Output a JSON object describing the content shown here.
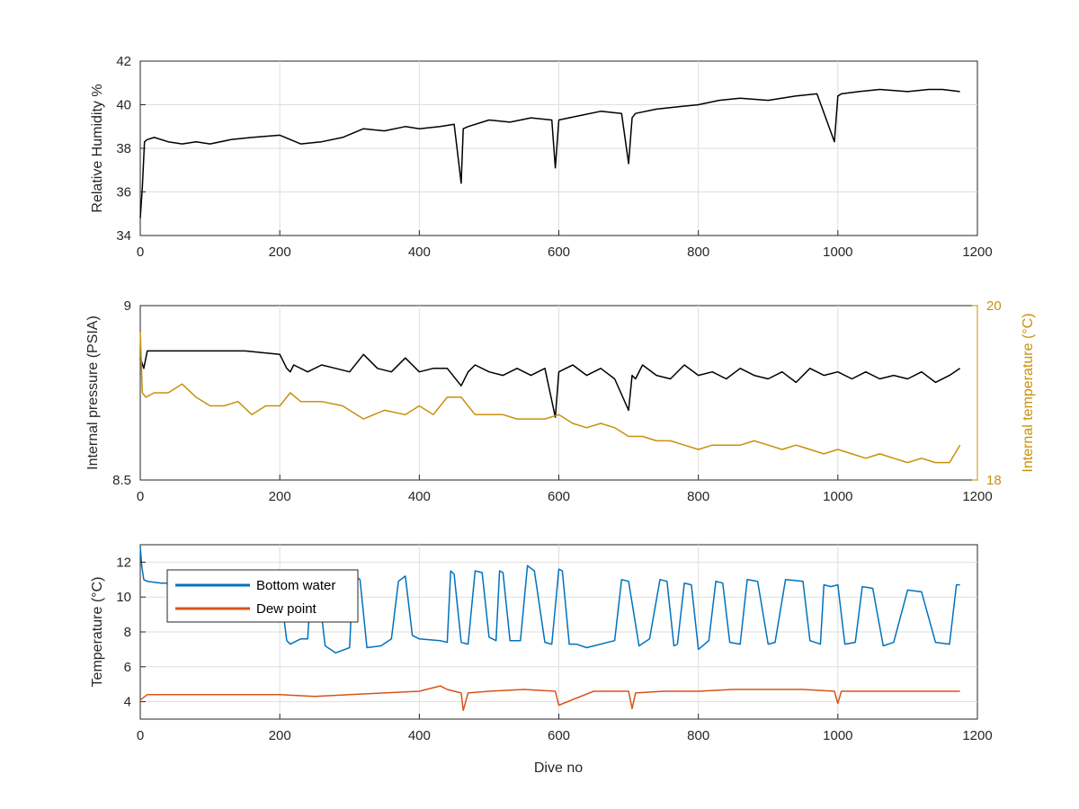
{
  "colors": {
    "humidity": "#000000",
    "pressure": "#000000",
    "internal_temp": "#c8900a",
    "bottom_water": "#0072bd",
    "dew_point": "#d95319",
    "axis": "#262626",
    "grid": "#dedede"
  },
  "chart_data": [
    {
      "id": "humidity",
      "type": "line",
      "title": "",
      "xlabel": "",
      "ylabel": "Relative Humidity %",
      "xlim": [
        0,
        1200
      ],
      "ylim": [
        34,
        42
      ],
      "xticks": [
        "0",
        "200",
        "400",
        "600",
        "800",
        "1000",
        "1200"
      ],
      "yticks": [
        "34",
        "36",
        "38",
        "40",
        "42"
      ],
      "grid": true,
      "series": [
        {
          "x": [
            0,
            3,
            6,
            10,
            20,
            40,
            60,
            80,
            100,
            130,
            160,
            200,
            230,
            260,
            290,
            320,
            350,
            380,
            400,
            430,
            450,
            460,
            463,
            470,
            500,
            530,
            560,
            590,
            595,
            600,
            630,
            660,
            690,
            700,
            705,
            710,
            740,
            770,
            800,
            830,
            860,
            900,
            940,
            970,
            995,
            1000,
            1005,
            1030,
            1060,
            1100,
            1130,
            1150,
            1175
          ],
          "y": [
            34.8,
            36.2,
            38.3,
            38.4,
            38.5,
            38.3,
            38.2,
            38.3,
            38.2,
            38.4,
            38.5,
            38.6,
            38.2,
            38.3,
            38.5,
            38.9,
            38.8,
            39.0,
            38.9,
            39.0,
            39.1,
            36.4,
            38.9,
            39.0,
            39.3,
            39.2,
            39.4,
            39.3,
            37.1,
            39.3,
            39.5,
            39.7,
            39.6,
            37.3,
            39.4,
            39.6,
            39.8,
            39.9,
            40.0,
            40.2,
            40.3,
            40.2,
            40.4,
            40.5,
            38.3,
            40.4,
            40.5,
            40.6,
            40.7,
            40.6,
            40.7,
            40.7,
            40.6
          ]
        }
      ]
    },
    {
      "id": "pressure",
      "type": "line",
      "title": "",
      "xlabel": "",
      "ylabel": "Internal pressure (PSIA)",
      "ylabel_right": "Internal temperature (°C)",
      "xlim": [
        0,
        1200
      ],
      "ylim": [
        8.5,
        9
      ],
      "ylim_right": [
        18,
        20
      ],
      "xticks": [
        "0",
        "200",
        "400",
        "600",
        "800",
        "1000",
        "1200"
      ],
      "yticks": [
        "8.5",
        "9"
      ],
      "yticks_right": [
        "18",
        "20"
      ],
      "grid": true,
      "series": [
        {
          "name": "Internal pressure",
          "axis": "left",
          "x": [
            0,
            5,
            10,
            50,
            100,
            150,
            200,
            210,
            215,
            220,
            240,
            260,
            280,
            300,
            320,
            340,
            360,
            380,
            400,
            420,
            440,
            460,
            470,
            480,
            500,
            520,
            540,
            560,
            580,
            595,
            600,
            620,
            640,
            660,
            680,
            700,
            705,
            710,
            720,
            740,
            760,
            780,
            800,
            820,
            840,
            860,
            880,
            900,
            920,
            940,
            960,
            980,
            1000,
            1020,
            1040,
            1060,
            1080,
            1100,
            1120,
            1140,
            1160,
            1175
          ],
          "y": [
            8.85,
            8.82,
            8.87,
            8.87,
            8.87,
            8.87,
            8.86,
            8.82,
            8.81,
            8.83,
            8.81,
            8.83,
            8.82,
            8.81,
            8.86,
            8.82,
            8.81,
            8.85,
            8.81,
            8.82,
            8.82,
            8.77,
            8.81,
            8.83,
            8.81,
            8.8,
            8.82,
            8.8,
            8.82,
            8.68,
            8.81,
            8.83,
            8.8,
            8.82,
            8.79,
            8.7,
            8.8,
            8.79,
            8.83,
            8.8,
            8.79,
            8.83,
            8.8,
            8.81,
            8.79,
            8.82,
            8.8,
            8.79,
            8.81,
            8.78,
            8.82,
            8.8,
            8.81,
            8.79,
            8.81,
            8.79,
            8.8,
            8.79,
            8.81,
            8.78,
            8.8,
            8.82
          ]
        },
        {
          "name": "Internal temperature",
          "axis": "right",
          "x": [
            0,
            3,
            8,
            20,
            40,
            60,
            80,
            100,
            120,
            140,
            160,
            180,
            200,
            215,
            230,
            260,
            290,
            320,
            350,
            380,
            400,
            420,
            440,
            460,
            480,
            500,
            520,
            540,
            560,
            580,
            600,
            620,
            640,
            660,
            680,
            700,
            720,
            740,
            760,
            780,
            800,
            820,
            840,
            860,
            880,
            900,
            920,
            940,
            960,
            980,
            1000,
            1020,
            1040,
            1060,
            1080,
            1100,
            1120,
            1140,
            1160,
            1175
          ],
          "y": [
            19.7,
            19.0,
            18.95,
            19.0,
            19.0,
            19.1,
            18.95,
            18.85,
            18.85,
            18.9,
            18.75,
            18.85,
            18.85,
            19.0,
            18.9,
            18.9,
            18.85,
            18.7,
            18.8,
            18.75,
            18.85,
            18.75,
            18.95,
            18.95,
            18.75,
            18.75,
            18.75,
            18.7,
            18.7,
            18.7,
            18.75,
            18.65,
            18.6,
            18.65,
            18.6,
            18.5,
            18.5,
            18.45,
            18.45,
            18.4,
            18.35,
            18.4,
            18.4,
            18.4,
            18.45,
            18.4,
            18.35,
            18.4,
            18.35,
            18.3,
            18.35,
            18.3,
            18.25,
            18.3,
            18.25,
            18.2,
            18.25,
            18.2,
            18.2,
            18.4
          ]
        }
      ]
    },
    {
      "id": "temperature",
      "type": "line",
      "title": "",
      "xlabel": "Dive no",
      "ylabel": "Temperature (°C)",
      "xlim": [
        0,
        1200
      ],
      "ylim": [
        3,
        13
      ],
      "xticks": [
        "0",
        "200",
        "400",
        "600",
        "800",
        "1000",
        "1200"
      ],
      "yticks": [
        "4",
        "6",
        "8",
        "10",
        "12"
      ],
      "grid": true,
      "legend": "top-left",
      "series": [
        {
          "name": "Bottom water",
          "x": [
            0,
            2,
            5,
            10,
            30,
            60,
            100,
            150,
            200,
            210,
            215,
            230,
            240,
            245,
            255,
            265,
            280,
            300,
            305,
            315,
            325,
            345,
            360,
            370,
            380,
            390,
            400,
            430,
            440,
            445,
            450,
            460,
            470,
            480,
            490,
            500,
            510,
            515,
            520,
            530,
            545,
            555,
            565,
            580,
            590,
            600,
            605,
            615,
            625,
            640,
            680,
            690,
            700,
            715,
            730,
            745,
            755,
            765,
            770,
            780,
            790,
            800,
            815,
            825,
            835,
            845,
            860,
            870,
            885,
            900,
            910,
            925,
            950,
            960,
            975,
            980,
            990,
            1000,
            1010,
            1025,
            1035,
            1050,
            1065,
            1080,
            1100,
            1120,
            1140,
            1160,
            1170,
            1175
          ],
          "y": [
            12.9,
            11.8,
            11.0,
            10.9,
            10.8,
            10.8,
            10.7,
            10.7,
            10.7,
            7.5,
            7.3,
            7.6,
            7.6,
            10.9,
            10.7,
            7.2,
            6.8,
            7.1,
            11.3,
            11.0,
            7.1,
            7.2,
            7.6,
            10.9,
            11.2,
            7.8,
            7.6,
            7.5,
            7.4,
            11.5,
            11.3,
            7.4,
            7.3,
            11.5,
            11.4,
            7.7,
            7.5,
            11.5,
            11.4,
            7.5,
            7.5,
            11.8,
            11.5,
            7.4,
            7.3,
            11.6,
            11.5,
            7.3,
            7.3,
            7.1,
            7.5,
            11.0,
            10.9,
            7.2,
            7.6,
            11.0,
            10.9,
            7.2,
            7.3,
            10.8,
            10.7,
            7.0,
            7.5,
            10.9,
            10.8,
            7.4,
            7.3,
            11.0,
            10.9,
            7.3,
            7.4,
            11.0,
            10.9,
            7.5,
            7.3,
            10.7,
            10.6,
            10.7,
            7.3,
            7.4,
            10.6,
            10.5,
            7.2,
            7.4,
            10.4,
            10.3,
            7.4,
            7.3,
            10.7,
            10.7
          ]
        },
        {
          "name": "Dew point",
          "x": [
            0,
            10,
            50,
            100,
            150,
            200,
            250,
            300,
            350,
            400,
            430,
            440,
            460,
            463,
            470,
            500,
            550,
            595,
            600,
            650,
            700,
            705,
            710,
            750,
            800,
            850,
            900,
            950,
            995,
            1000,
            1005,
            1050,
            1100,
            1150,
            1175
          ],
          "y": [
            4.1,
            4.4,
            4.4,
            4.4,
            4.4,
            4.4,
            4.3,
            4.4,
            4.5,
            4.6,
            4.9,
            4.7,
            4.5,
            3.5,
            4.5,
            4.6,
            4.7,
            4.6,
            3.8,
            4.6,
            4.6,
            3.6,
            4.5,
            4.6,
            4.6,
            4.7,
            4.7,
            4.7,
            4.6,
            3.9,
            4.6,
            4.6,
            4.6,
            4.6,
            4.6
          ]
        }
      ]
    }
  ]
}
